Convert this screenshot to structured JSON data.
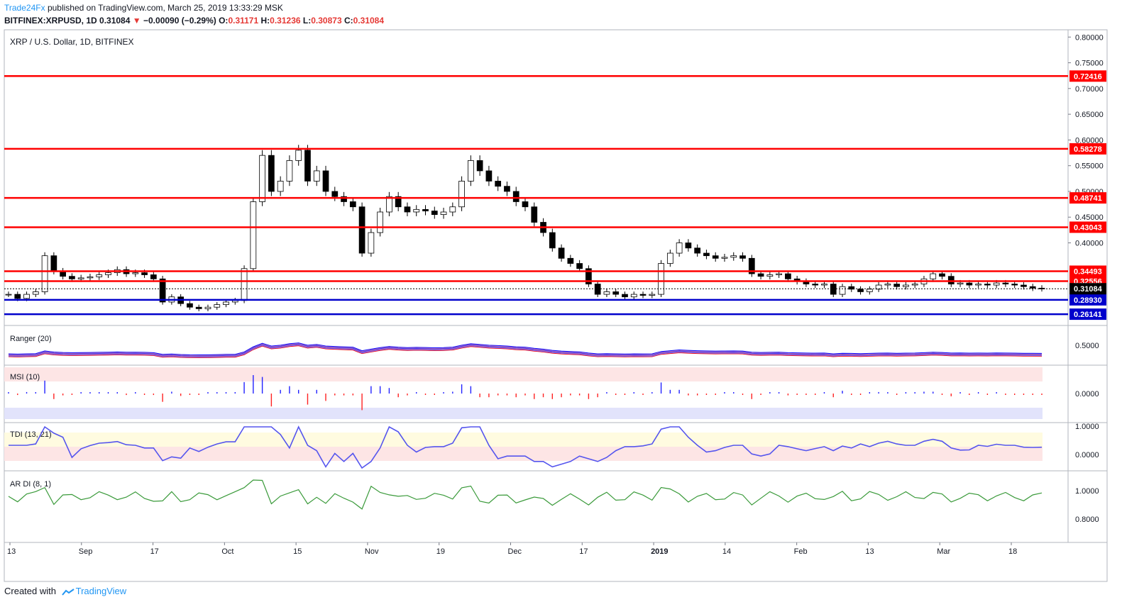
{
  "header": {
    "publisher": "Trade24Fx",
    "published_text": "published on TradingView.com, March 25, 2019 13:33:29 MSK"
  },
  "quote": {
    "symbol": "BITFINEX:XRPUSD, 1D",
    "last": "0.31084",
    "arrow": "▼",
    "change": "−0.00090 (−0.29%)",
    "o_label": "O:",
    "o": "0.31171",
    "h_label": "H:",
    "h": "0.31236",
    "l_label": "L:",
    "l": "0.30873",
    "c_label": "C:",
    "c": "0.31084"
  },
  "footer": {
    "created_with": "Created with",
    "brand": "TradingView"
  },
  "colors": {
    "up": "#ffffff",
    "down": "#000000",
    "red_level": "#ff0000",
    "blue_level": "#0000cc",
    "accent": "#2196f3"
  },
  "chart_data": {
    "type": "candlestick",
    "title": "XRP / U.S. Dollar, 1D, BITFINEX",
    "price_axis": {
      "ticks": [
        "0.80000",
        "0.75000",
        "0.70000",
        "0.65000",
        "0.60000",
        "0.55000",
        "0.50000",
        "0.45000",
        "0.40000"
      ],
      "range": [
        0.245,
        0.81
      ]
    },
    "time_axis": [
      "13",
      "Sep",
      "17",
      "Oct",
      "15",
      "Nov",
      "19",
      "Dec",
      "17",
      "2019",
      "14",
      "Feb",
      "13",
      "Mar",
      "18"
    ],
    "current_price": "0.31084",
    "resistance_levels": [
      "0.72416",
      "0.58278",
      "0.48741",
      "0.43043",
      "0.34493",
      "0.32556"
    ],
    "support_levels": [
      "0.28930",
      "0.26141"
    ],
    "close_series": [
      0.3,
      0.292,
      0.3,
      0.305,
      0.375,
      0.345,
      0.335,
      0.33,
      0.332,
      0.334,
      0.338,
      0.342,
      0.348,
      0.34,
      0.342,
      0.338,
      0.33,
      0.285,
      0.295,
      0.282,
      0.275,
      0.272,
      0.275,
      0.28,
      0.285,
      0.288,
      0.35,
      0.48,
      0.57,
      0.5,
      0.52,
      0.56,
      0.58,
      0.52,
      0.54,
      0.5,
      0.49,
      0.48,
      0.47,
      0.38,
      0.42,
      0.46,
      0.49,
      0.47,
      0.46,
      0.465,
      0.462,
      0.455,
      0.46,
      0.47,
      0.52,
      0.56,
      0.54,
      0.52,
      0.51,
      0.5,
      0.48,
      0.47,
      0.44,
      0.42,
      0.39,
      0.37,
      0.36,
      0.35,
      0.32,
      0.3,
      0.305,
      0.3,
      0.295,
      0.3,
      0.298,
      0.3,
      0.36,
      0.38,
      0.4,
      0.39,
      0.38,
      0.375,
      0.37,
      0.372,
      0.375,
      0.37,
      0.34,
      0.335,
      0.338,
      0.34,
      0.33,
      0.325,
      0.32,
      0.318,
      0.32,
      0.3,
      0.315,
      0.31,
      0.305,
      0.31,
      0.318,
      0.32,
      0.315,
      0.318,
      0.32,
      0.33,
      0.34,
      0.335,
      0.32,
      0.322,
      0.318,
      0.32,
      0.318,
      0.322,
      0.32,
      0.318,
      0.315,
      0.312,
      0.311
    ],
    "indicators": [
      {
        "name": "Ranger (20)",
        "ticks": [
          "0.5000"
        ]
      },
      {
        "name": "MSI (10)",
        "ticks": [
          "0.0000"
        ]
      },
      {
        "name": "TDI (13, 21)",
        "ticks": [
          "1.0000",
          "0.0000"
        ]
      },
      {
        "name": "AR DI (8, 1)",
        "ticks": [
          "1.0000",
          "0.8000"
        ]
      }
    ]
  }
}
